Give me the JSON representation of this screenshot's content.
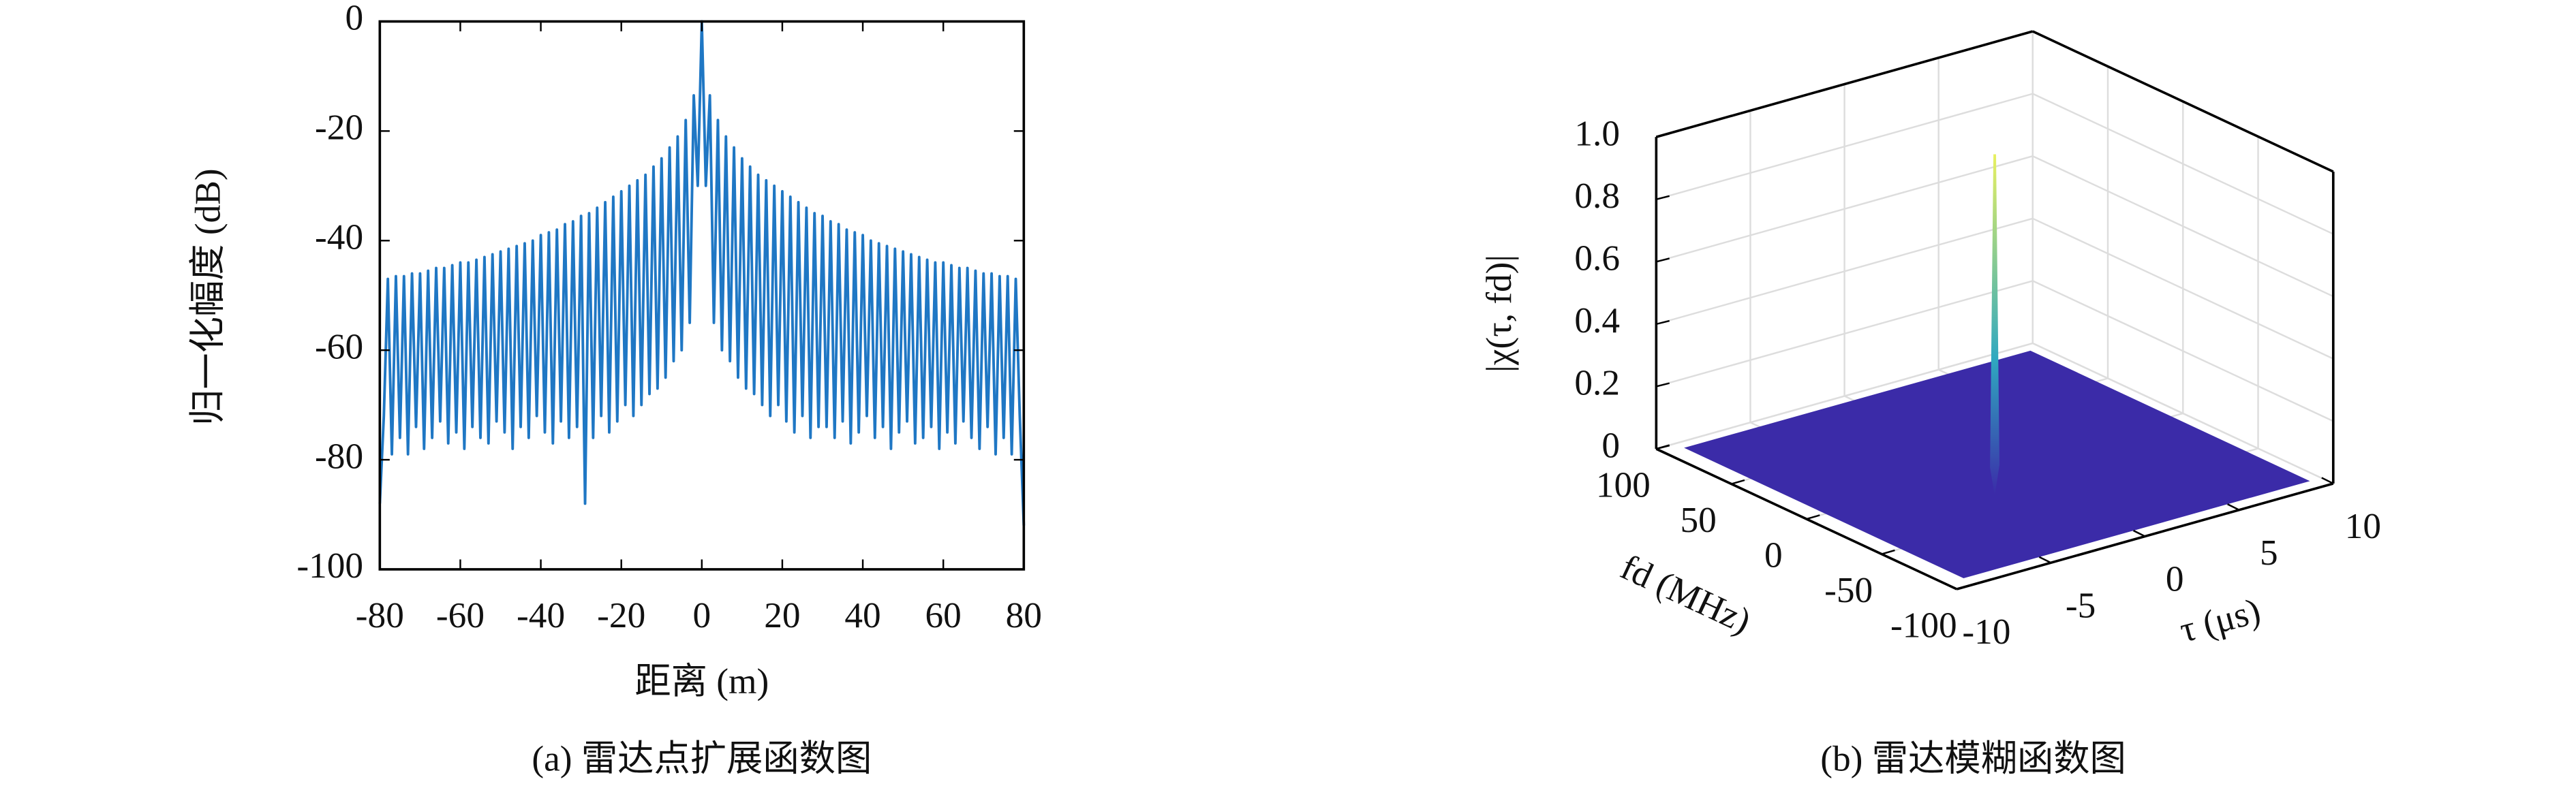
{
  "chart_data": [
    {
      "type": "line",
      "xlabel": "距离 (m)",
      "ylabel": "归一化幅度 (dB)",
      "caption": "(a) 雷达点扩展函数图",
      "color": "#1f77c4",
      "xlim": [
        -80,
        80
      ],
      "xticks": [
        -80,
        -60,
        -40,
        -20,
        0,
        20,
        40,
        60,
        80
      ],
      "ylim": [
        -100,
        0
      ],
      "yticks": [
        0,
        -20,
        -40,
        -60,
        -80,
        -100
      ],
      "x": [
        -80,
        -79,
        -78,
        -77,
        -76,
        -75,
        -74,
        -73,
        -72,
        -71,
        -70,
        -69,
        -68,
        -67,
        -66,
        -65,
        -64,
        -63,
        -62,
        -61,
        -60,
        -59,
        -58,
        -57,
        -56,
        -55,
        -54,
        -53,
        -52,
        -51,
        -50,
        -49,
        -48,
        -47,
        -46,
        -45,
        -44,
        -43,
        -42,
        -41,
        -40,
        -39,
        -38,
        -37,
        -36,
        -35,
        -34,
        -33,
        -32,
        -31,
        -30,
        -29,
        -28,
        -27,
        -26,
        -25,
        -24,
        -23,
        -22,
        -21,
        -20,
        -19,
        -18,
        -17,
        -16,
        -15,
        -14,
        -13,
        -12,
        -11,
        -10,
        -9,
        -8,
        -7,
        -6,
        -5,
        -4,
        -3,
        -2,
        -1,
        0,
        1,
        2,
        3,
        4,
        5,
        6,
        7,
        8,
        9,
        10,
        11,
        12,
        13,
        14,
        15,
        16,
        17,
        18,
        19,
        20,
        21,
        22,
        23,
        24,
        25,
        26,
        27,
        28,
        29,
        30,
        31,
        32,
        33,
        34,
        35,
        36,
        37,
        38,
        39,
        40,
        41,
        42,
        43,
        44,
        45,
        46,
        47,
        48,
        49,
        50,
        51,
        52,
        53,
        54,
        55,
        56,
        57,
        58,
        59,
        60,
        61,
        62,
        63,
        64,
        65,
        66,
        67,
        68,
        69,
        70,
        71,
        72,
        73,
        74,
        75,
        76,
        77,
        78,
        79,
        80
      ],
      "values": [
        -88,
        -72,
        -47,
        -79,
        -46.5,
        -76,
        -46.5,
        -79,
        -46,
        -74,
        -46,
        -78,
        -45.5,
        -76,
        -45,
        -73,
        -45,
        -77,
        -44.5,
        -75,
        -44,
        -78,
        -44,
        -74,
        -43.5,
        -76,
        -43,
        -77,
        -42.5,
        -73,
        -42,
        -75,
        -41.5,
        -78,
        -41,
        -74,
        -40.5,
        -76,
        -40,
        -72,
        -39,
        -75,
        -38.5,
        -77,
        -38,
        -73,
        -37,
        -76,
        -36.5,
        -74,
        -35.5,
        -88,
        -35,
        -76,
        -34,
        -72,
        -33,
        -75,
        -32,
        -73,
        -31,
        -70,
        -30,
        -72,
        -29,
        -70,
        -28,
        -68,
        -26.5,
        -67,
        -25,
        -65,
        -23,
        -62,
        -21,
        -60,
        -18,
        -55,
        -13.5,
        -30,
        0,
        -30,
        -13.5,
        -55,
        -18,
        -60,
        -21,
        -62,
        -23,
        -65,
        -25,
        -67,
        -26.5,
        -68,
        -28,
        -70,
        -29,
        -72,
        -30,
        -70,
        -31,
        -73,
        -32,
        -75,
        -33,
        -72,
        -34,
        -76,
        -35,
        -74,
        -35.5,
        -74,
        -36.5,
        -76,
        -37,
        -73,
        -38,
        -77,
        -38.5,
        -75,
        -39,
        -72,
        -40,
        -76,
        -40.5,
        -74,
        -41,
        -78,
        -41.5,
        -75,
        -42,
        -73,
        -42.5,
        -77,
        -43,
        -76,
        -43.5,
        -74,
        -44,
        -78,
        -44,
        -75,
        -44.5,
        -77,
        -45,
        -73,
        -45,
        -76,
        -45.5,
        -78,
        -46,
        -74,
        -46,
        -79,
        -46.5,
        -76,
        -46.5,
        -79,
        -47,
        -72,
        -92
      ]
    },
    {
      "type": "surface3d",
      "xlabel": "τ (μs)",
      "ylabel": "fd (MHz)",
      "zlabel": "|χ(τ, fd)|",
      "caption": "(b) 雷达模糊函数图",
      "xlim": [
        -10,
        10
      ],
      "xticks": [
        -10,
        -5,
        0,
        5,
        10
      ],
      "ylim": [
        -100,
        100
      ],
      "yticks": [
        -100,
        -50,
        0,
        50,
        100
      ],
      "zlim": [
        0,
        1
      ],
      "zticks": [
        0,
        0.2,
        0.4,
        0.6,
        0.8,
        {
          "value": 1,
          "label": "1.0"
        }
      ],
      "grid": true,
      "surface": {
        "floor": 0,
        "floor_color": "#3b2ba8",
        "peak": 1,
        "peak_x": 0,
        "peak_y": 0,
        "peak_color": "#e8f060"
      }
    }
  ]
}
